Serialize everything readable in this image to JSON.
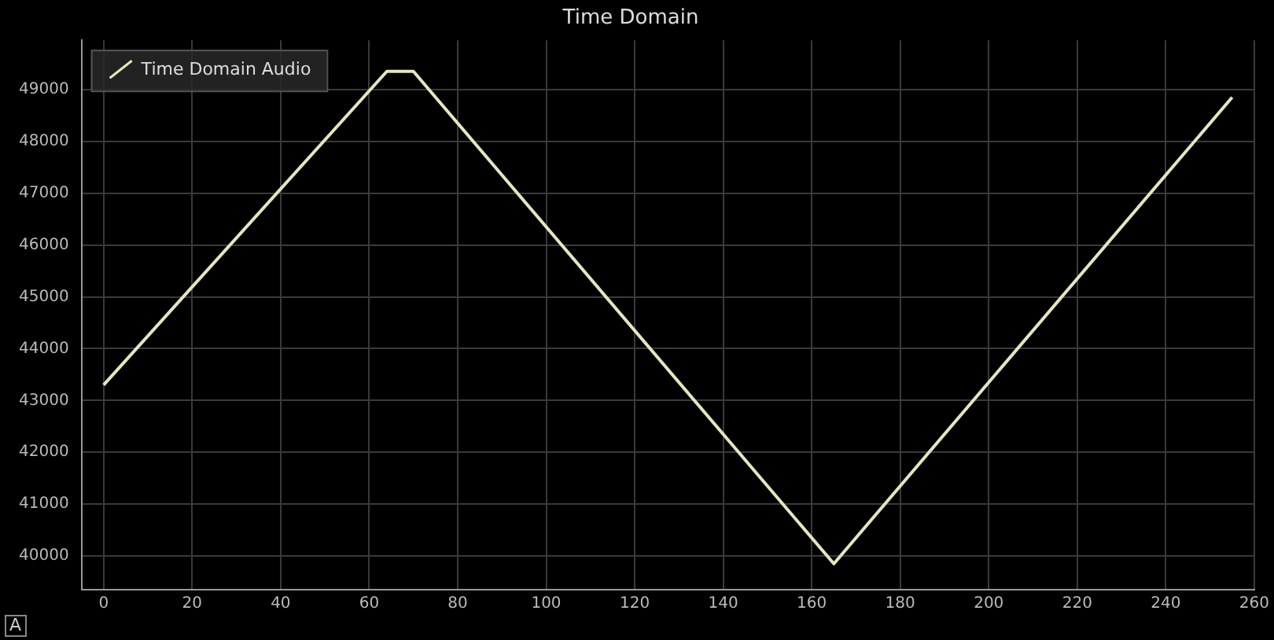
{
  "chart_data": {
    "type": "line",
    "title": "Time Domain",
    "x": [
      0,
      64,
      70,
      165,
      255
    ],
    "series": [
      {
        "name": "Time Domain Audio",
        "color": "#e6e6bf",
        "values": [
          43300,
          49350,
          49350,
          39850,
          48850
        ]
      }
    ],
    "xlim": [
      -5,
      260
    ],
    "xticks": [
      0,
      20,
      40,
      60,
      80,
      100,
      120,
      140,
      160,
      180,
      200,
      220,
      240,
      260
    ],
    "ylim": [
      39350,
      49950
    ],
    "yticks": [
      40000,
      41000,
      42000,
      43000,
      44000,
      45000,
      46000,
      47000,
      48000,
      49000
    ],
    "grid": true,
    "legend": "top left",
    "marker": "none",
    "line_style": "solid",
    "annotations": [
      "A"
    ]
  }
}
